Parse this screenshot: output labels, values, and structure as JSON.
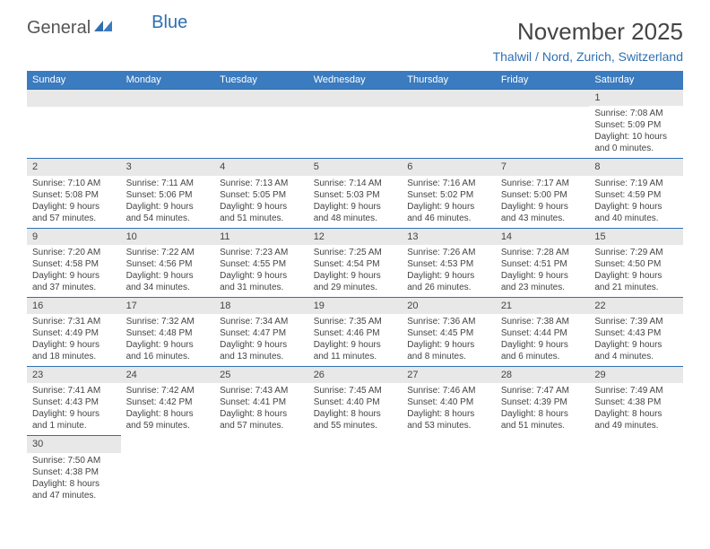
{
  "logo": {
    "general": "General",
    "blue": "Blue"
  },
  "title": "November 2025",
  "location": "Thalwil / Nord, Zurich, Switzerland",
  "columns": [
    "Sunday",
    "Monday",
    "Tuesday",
    "Wednesday",
    "Thursday",
    "Friday",
    "Saturday"
  ],
  "colors": {
    "header_bg": "#3b7bbf",
    "header_text": "#ffffff",
    "band_bg": "#e8e8e8",
    "accent": "#2f6fb2",
    "text": "#444444"
  },
  "weeks": [
    [
      null,
      null,
      null,
      null,
      null,
      null,
      {
        "n": "1",
        "sr": "Sunrise: 7:08 AM",
        "ss": "Sunset: 5:09 PM",
        "d1": "Daylight: 10 hours",
        "d2": "and 0 minutes."
      }
    ],
    [
      {
        "n": "2",
        "sr": "Sunrise: 7:10 AM",
        "ss": "Sunset: 5:08 PM",
        "d1": "Daylight: 9 hours",
        "d2": "and 57 minutes."
      },
      {
        "n": "3",
        "sr": "Sunrise: 7:11 AM",
        "ss": "Sunset: 5:06 PM",
        "d1": "Daylight: 9 hours",
        "d2": "and 54 minutes."
      },
      {
        "n": "4",
        "sr": "Sunrise: 7:13 AM",
        "ss": "Sunset: 5:05 PM",
        "d1": "Daylight: 9 hours",
        "d2": "and 51 minutes."
      },
      {
        "n": "5",
        "sr": "Sunrise: 7:14 AM",
        "ss": "Sunset: 5:03 PM",
        "d1": "Daylight: 9 hours",
        "d2": "and 48 minutes."
      },
      {
        "n": "6",
        "sr": "Sunrise: 7:16 AM",
        "ss": "Sunset: 5:02 PM",
        "d1": "Daylight: 9 hours",
        "d2": "and 46 minutes."
      },
      {
        "n": "7",
        "sr": "Sunrise: 7:17 AM",
        "ss": "Sunset: 5:00 PM",
        "d1": "Daylight: 9 hours",
        "d2": "and 43 minutes."
      },
      {
        "n": "8",
        "sr": "Sunrise: 7:19 AM",
        "ss": "Sunset: 4:59 PM",
        "d1": "Daylight: 9 hours",
        "d2": "and 40 minutes."
      }
    ],
    [
      {
        "n": "9",
        "sr": "Sunrise: 7:20 AM",
        "ss": "Sunset: 4:58 PM",
        "d1": "Daylight: 9 hours",
        "d2": "and 37 minutes."
      },
      {
        "n": "10",
        "sr": "Sunrise: 7:22 AM",
        "ss": "Sunset: 4:56 PM",
        "d1": "Daylight: 9 hours",
        "d2": "and 34 minutes."
      },
      {
        "n": "11",
        "sr": "Sunrise: 7:23 AM",
        "ss": "Sunset: 4:55 PM",
        "d1": "Daylight: 9 hours",
        "d2": "and 31 minutes."
      },
      {
        "n": "12",
        "sr": "Sunrise: 7:25 AM",
        "ss": "Sunset: 4:54 PM",
        "d1": "Daylight: 9 hours",
        "d2": "and 29 minutes."
      },
      {
        "n": "13",
        "sr": "Sunrise: 7:26 AM",
        "ss": "Sunset: 4:53 PM",
        "d1": "Daylight: 9 hours",
        "d2": "and 26 minutes."
      },
      {
        "n": "14",
        "sr": "Sunrise: 7:28 AM",
        "ss": "Sunset: 4:51 PM",
        "d1": "Daylight: 9 hours",
        "d2": "and 23 minutes."
      },
      {
        "n": "15",
        "sr": "Sunrise: 7:29 AM",
        "ss": "Sunset: 4:50 PM",
        "d1": "Daylight: 9 hours",
        "d2": "and 21 minutes."
      }
    ],
    [
      {
        "n": "16",
        "sr": "Sunrise: 7:31 AM",
        "ss": "Sunset: 4:49 PM",
        "d1": "Daylight: 9 hours",
        "d2": "and 18 minutes."
      },
      {
        "n": "17",
        "sr": "Sunrise: 7:32 AM",
        "ss": "Sunset: 4:48 PM",
        "d1": "Daylight: 9 hours",
        "d2": "and 16 minutes."
      },
      {
        "n": "18",
        "sr": "Sunrise: 7:34 AM",
        "ss": "Sunset: 4:47 PM",
        "d1": "Daylight: 9 hours",
        "d2": "and 13 minutes."
      },
      {
        "n": "19",
        "sr": "Sunrise: 7:35 AM",
        "ss": "Sunset: 4:46 PM",
        "d1": "Daylight: 9 hours",
        "d2": "and 11 minutes."
      },
      {
        "n": "20",
        "sr": "Sunrise: 7:36 AM",
        "ss": "Sunset: 4:45 PM",
        "d1": "Daylight: 9 hours",
        "d2": "and 8 minutes."
      },
      {
        "n": "21",
        "sr": "Sunrise: 7:38 AM",
        "ss": "Sunset: 4:44 PM",
        "d1": "Daylight: 9 hours",
        "d2": "and 6 minutes."
      },
      {
        "n": "22",
        "sr": "Sunrise: 7:39 AM",
        "ss": "Sunset: 4:43 PM",
        "d1": "Daylight: 9 hours",
        "d2": "and 4 minutes."
      }
    ],
    [
      {
        "n": "23",
        "sr": "Sunrise: 7:41 AM",
        "ss": "Sunset: 4:43 PM",
        "d1": "Daylight: 9 hours",
        "d2": "and 1 minute."
      },
      {
        "n": "24",
        "sr": "Sunrise: 7:42 AM",
        "ss": "Sunset: 4:42 PM",
        "d1": "Daylight: 8 hours",
        "d2": "and 59 minutes."
      },
      {
        "n": "25",
        "sr": "Sunrise: 7:43 AM",
        "ss": "Sunset: 4:41 PM",
        "d1": "Daylight: 8 hours",
        "d2": "and 57 minutes."
      },
      {
        "n": "26",
        "sr": "Sunrise: 7:45 AM",
        "ss": "Sunset: 4:40 PM",
        "d1": "Daylight: 8 hours",
        "d2": "and 55 minutes."
      },
      {
        "n": "27",
        "sr": "Sunrise: 7:46 AM",
        "ss": "Sunset: 4:40 PM",
        "d1": "Daylight: 8 hours",
        "d2": "and 53 minutes."
      },
      {
        "n": "28",
        "sr": "Sunrise: 7:47 AM",
        "ss": "Sunset: 4:39 PM",
        "d1": "Daylight: 8 hours",
        "d2": "and 51 minutes."
      },
      {
        "n": "29",
        "sr": "Sunrise: 7:49 AM",
        "ss": "Sunset: 4:38 PM",
        "d1": "Daylight: 8 hours",
        "d2": "and 49 minutes."
      }
    ],
    [
      {
        "n": "30",
        "sr": "Sunrise: 7:50 AM",
        "ss": "Sunset: 4:38 PM",
        "d1": "Daylight: 8 hours",
        "d2": "and 47 minutes."
      },
      null,
      null,
      null,
      null,
      null,
      null
    ]
  ]
}
